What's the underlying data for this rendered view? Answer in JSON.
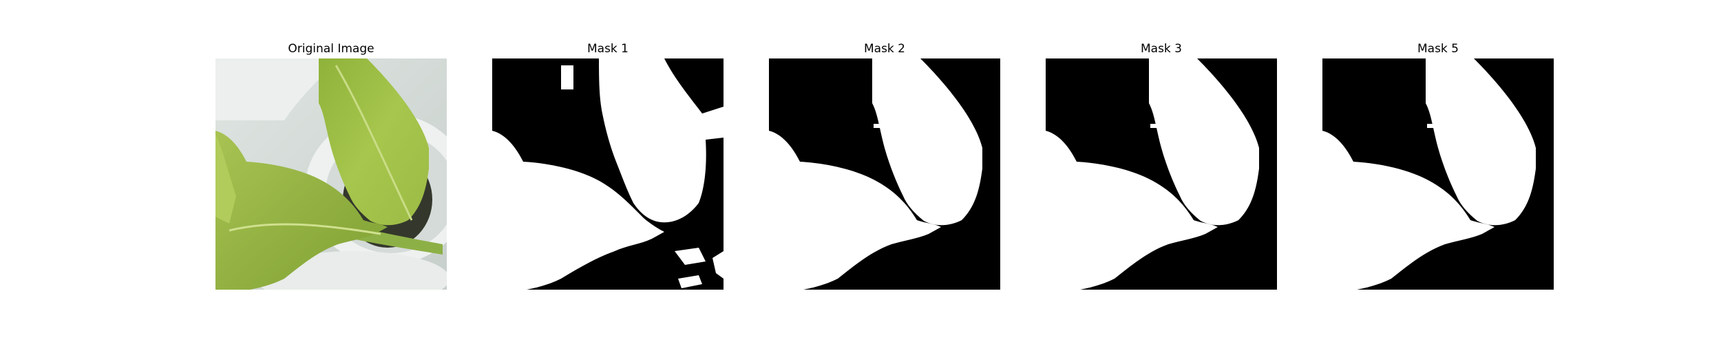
{
  "figure": {
    "panels": [
      {
        "title": "Original Image",
        "kind": "photo",
        "subject": "green plant leaves on white pot"
      },
      {
        "title": "Mask 1",
        "kind": "binary-mask"
      },
      {
        "title": "Mask 2",
        "kind": "binary-mask"
      },
      {
        "title": "Mask 3",
        "kind": "binary-mask"
      },
      {
        "title": "Mask 5",
        "kind": "binary-mask"
      }
    ]
  },
  "colors": {
    "mask_foreground": "#ffffff",
    "mask_background": "#000000",
    "leaf_light": "#b5cf5a",
    "leaf_dark": "#7fa233",
    "pot_white": "#e4e8e6"
  }
}
